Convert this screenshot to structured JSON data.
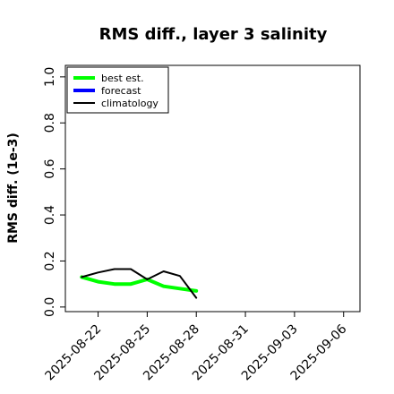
{
  "chart_data": {
    "type": "line",
    "title": "RMS diff., layer 3 salinity",
    "xlabel": "",
    "ylabel": "RMS diff. (1e-3)",
    "ylim": [
      -0.02,
      1.05
    ],
    "yticks": [
      0.0,
      0.2,
      0.4,
      0.6,
      0.8,
      1.0
    ],
    "ytick_labels": [
      "0.0",
      "0.2",
      "0.4",
      "0.6",
      "0.8",
      "1.0"
    ],
    "xlim": [
      "2025-08-20",
      "2025-09-07"
    ],
    "xticks": [
      "2025-08-22",
      "2025-08-25",
      "2025-08-28",
      "2025-08-31",
      "2025-09-03",
      "2025-09-06"
    ],
    "highlighted_xtick": "2025-08-28",
    "highlight_color": "#228B22",
    "grid": false,
    "legend_position": "top-left",
    "series": [
      {
        "name": "best est.",
        "color": "#00ff00",
        "x": [
          "2025-08-21",
          "2025-08-22",
          "2025-08-23",
          "2025-08-24",
          "2025-08-25",
          "2025-08-26",
          "2025-08-27",
          "2025-08-28"
        ],
        "y": [
          0.13,
          0.11,
          0.1,
          0.1,
          0.12,
          0.09,
          0.08,
          0.07
        ]
      },
      {
        "name": "forecast",
        "color": "#0000ff",
        "x": [],
        "y": []
      },
      {
        "name": "climatology",
        "color": "#000000",
        "x": [
          "2025-08-21",
          "2025-08-22",
          "2025-08-23",
          "2025-08-24",
          "2025-08-25",
          "2025-08-26",
          "2025-08-27",
          "2025-08-28"
        ],
        "y": [
          0.13,
          0.15,
          0.165,
          0.165,
          0.12,
          0.155,
          0.135,
          0.04
        ]
      }
    ]
  }
}
